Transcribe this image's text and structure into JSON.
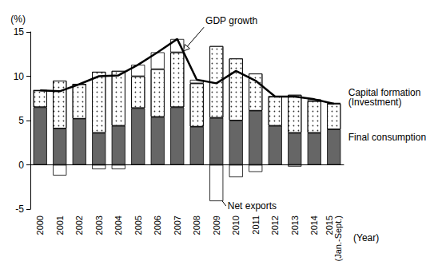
{
  "chart_data": {
    "type": "bar",
    "y_label": "(%)",
    "x_label": "(Year)",
    "categories": [
      "2000",
      "2001",
      "2002",
      "2003",
      "2004",
      "2005",
      "2006",
      "2007",
      "2008",
      "2009",
      "2010",
      "2011",
      "2012",
      "2013",
      "2014",
      "2015 (Jan.-Sept.)"
    ],
    "series": [
      {
        "name": "Final consumption",
        "type": "bar",
        "color": "#666666",
        "values": [
          6.5,
          4.1,
          5.2,
          3.6,
          4.4,
          6.4,
          5.4,
          6.5,
          4.3,
          5.3,
          5.0,
          6.1,
          4.4,
          3.6,
          3.6,
          4.0
        ]
      },
      {
        "name": "Capital formation (Investment)",
        "type": "bar",
        "color": "#ffffff",
        "values": [
          1.9,
          5.4,
          3.9,
          6.9,
          6.2,
          3.6,
          5.4,
          6.2,
          4.9,
          8.1,
          7.0,
          4.2,
          3.3,
          4.3,
          3.6,
          2.9
        ]
      },
      {
        "name": "Net exports",
        "type": "bar",
        "color": "#ffffff",
        "values": [
          0.0,
          -1.2,
          0.0,
          -0.5,
          -0.5,
          1.3,
          1.9,
          1.5,
          0.4,
          -4.1,
          -1.4,
          -0.8,
          0.0,
          -0.2,
          0.2,
          0.1
        ]
      },
      {
        "name": "GDP growth",
        "type": "line",
        "color": "#000000",
        "values": [
          8.4,
          8.3,
          9.1,
          10.0,
          10.1,
          11.3,
          12.7,
          14.2,
          9.6,
          9.2,
          10.6,
          9.5,
          7.7,
          7.7,
          7.4,
          6.9
        ]
      }
    ],
    "ylim": [
      -5,
      15
    ],
    "yticks": [
      -5,
      0,
      5,
      10,
      15
    ],
    "stacked": true,
    "grid": false
  }
}
